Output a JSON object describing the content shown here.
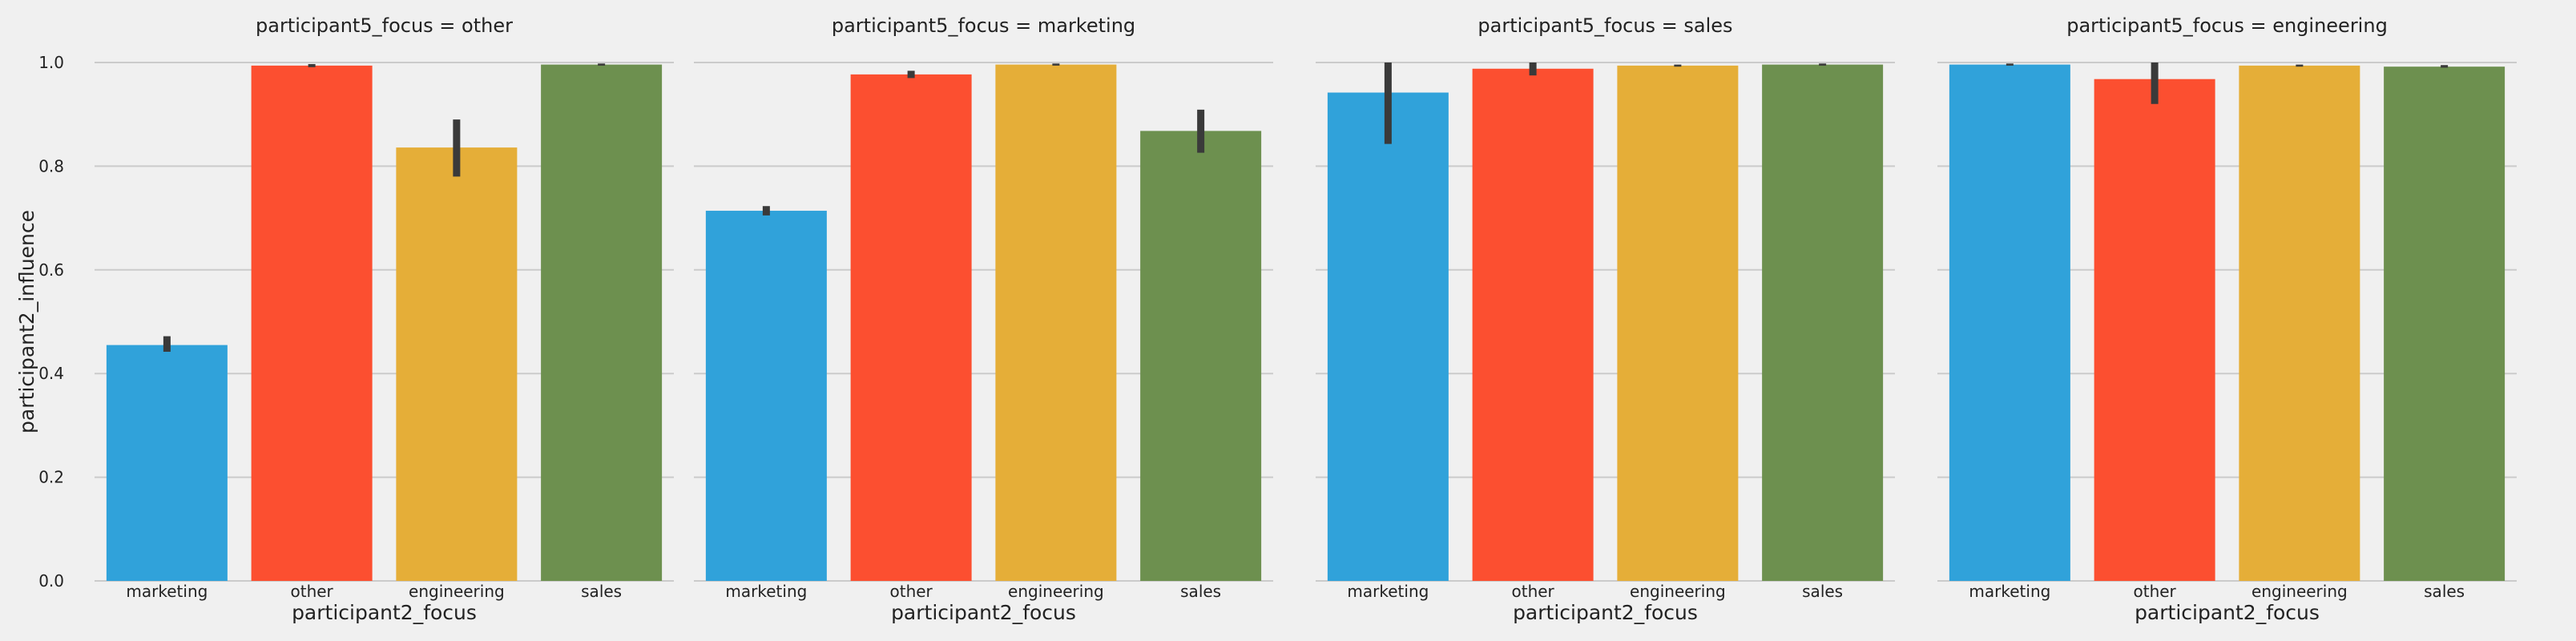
{
  "chart_data": {
    "type": "bar",
    "facet_label_prefix": "participant5_focus = ",
    "xlabel": "participant2_focus",
    "ylabel": "participant2_influence",
    "ylim": [
      0,
      1.0
    ],
    "yticks": [
      "0.0",
      "0.2",
      "0.4",
      "0.6",
      "0.8",
      "1.0"
    ],
    "grid": true,
    "series_colors": {
      "marketing": "#30a2da",
      "other": "#fc4f30",
      "engineering": "#e5ae38",
      "sales": "#6d904f"
    },
    "categories": [
      "marketing",
      "other",
      "engineering",
      "sales"
    ],
    "panels": [
      {
        "title": "participant5_focus = other",
        "facet": "other",
        "values": [
          0.455,
          0.994,
          0.836,
          0.996
        ],
        "err_low": [
          0.442,
          0.991,
          0.78,
          0.994
        ],
        "err_high": [
          0.472,
          0.997,
          0.89,
          0.998
        ]
      },
      {
        "title": "participant5_focus = marketing",
        "facet": "marketing",
        "values": [
          0.714,
          0.977,
          0.996,
          0.868
        ],
        "err_low": [
          0.705,
          0.97,
          0.994,
          0.826
        ],
        "err_high": [
          0.723,
          0.984,
          0.998,
          0.909
        ]
      },
      {
        "title": "participant5_focus = sales",
        "facet": "sales",
        "values": [
          0.942,
          0.988,
          0.994,
          0.996
        ],
        "err_low": [
          0.843,
          0.975,
          0.992,
          0.994
        ],
        "err_high": [
          1.0,
          1.0,
          0.996,
          0.998
        ]
      },
      {
        "title": "participant5_focus = engineering",
        "facet": "engineering",
        "values": [
          0.996,
          0.968,
          0.994,
          0.992
        ],
        "err_low": [
          0.994,
          0.92,
          0.992,
          0.99
        ],
        "err_high": [
          0.998,
          1.0,
          0.996,
          0.995
        ]
      }
    ]
  }
}
